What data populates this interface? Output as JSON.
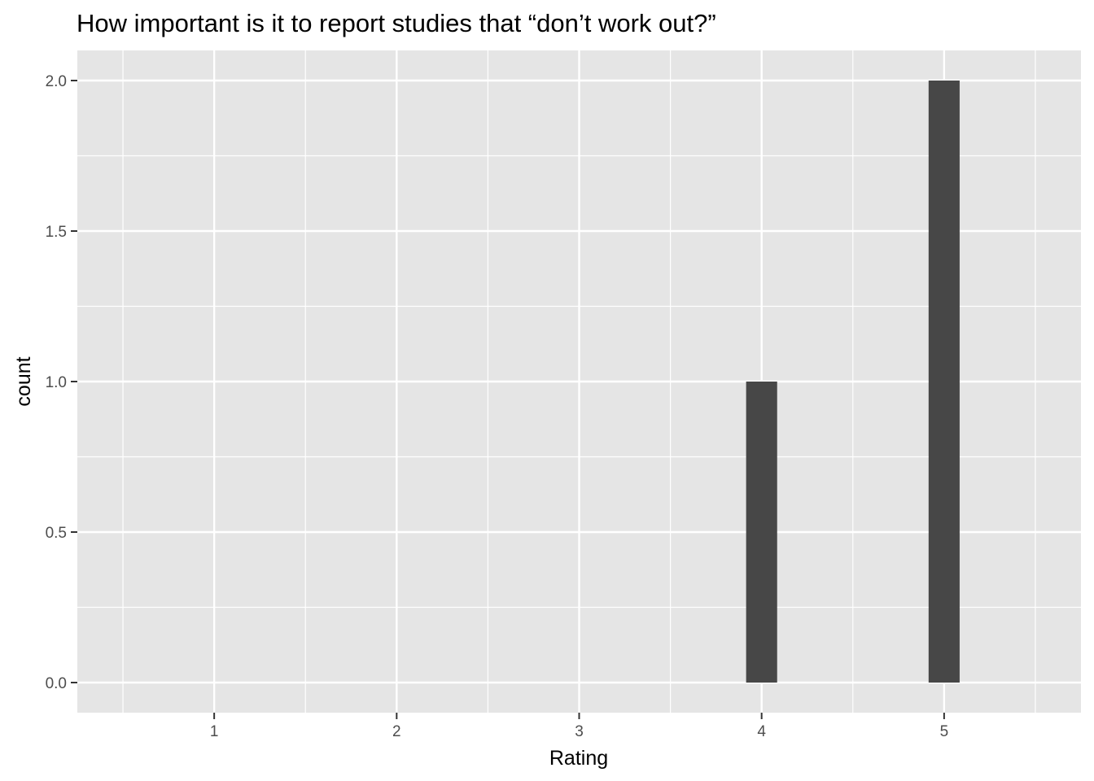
{
  "chart_data": {
    "type": "bar",
    "title": "How important is it to report studies that “don’t work out?”",
    "xlabel": "Rating",
    "ylabel": "count",
    "x_ticks": [
      "1",
      "2",
      "3",
      "4",
      "5"
    ],
    "y_ticks": [
      "0.0",
      "0.5",
      "1.0",
      "1.5",
      "2.0"
    ],
    "xlim": [
      0.25,
      5.75
    ],
    "ylim": [
      -0.1,
      2.1
    ],
    "series": [
      {
        "x": [
          4,
          5
        ],
        "values": [
          1,
          2
        ]
      }
    ],
    "grid": true,
    "legend": "none"
  },
  "colors": {
    "panel_background": "#e5e5e5",
    "grid_line": "#ffffff",
    "bar_fill": "#474747",
    "tick_mark": "#333333",
    "tick_text": "#4d4d4d"
  }
}
